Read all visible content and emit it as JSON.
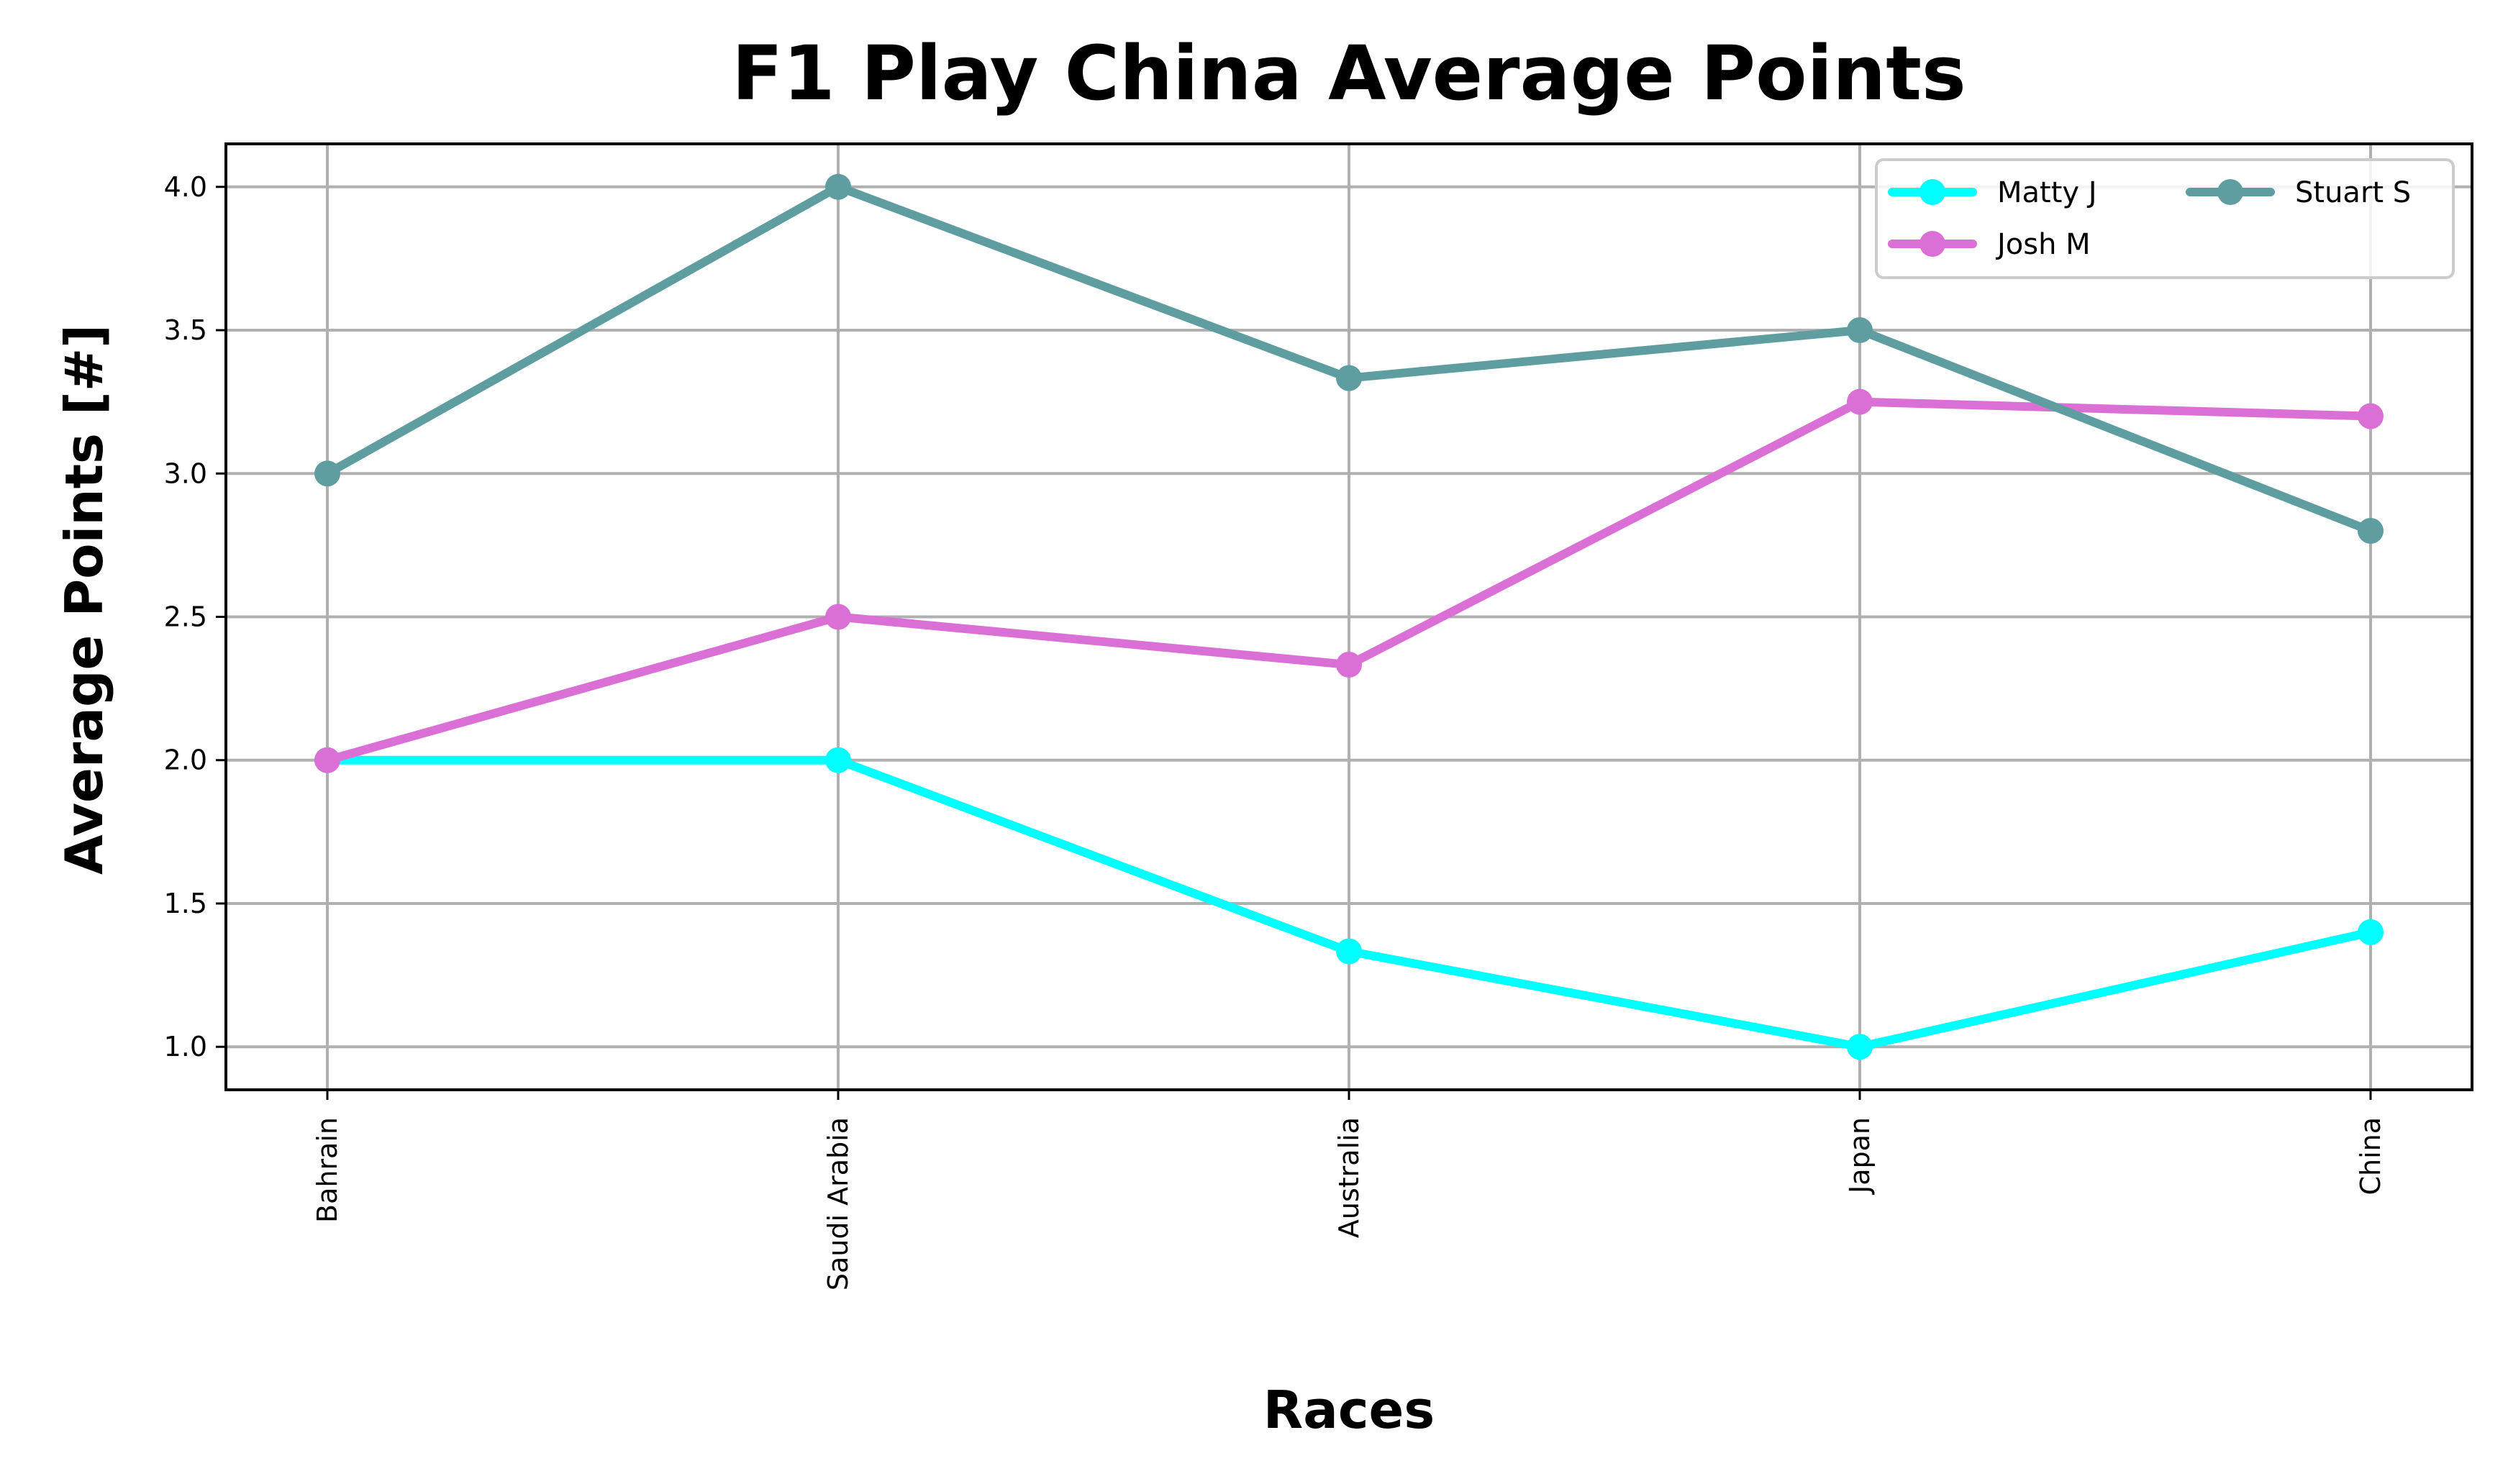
{
  "chart_data": {
    "type": "line",
    "title": "F1 Play China Average Points",
    "xlabel": "Races",
    "ylabel": "Average Points [#]",
    "categories": [
      "Bahrain",
      "Saudi Arabia",
      "Australia",
      "Japan",
      "China"
    ],
    "ylim": [
      0.85,
      4.15
    ],
    "yticks": [
      "1.0",
      "1.5",
      "2.0",
      "2.5",
      "3.0",
      "3.5",
      "4.0"
    ],
    "grid": true,
    "legend_position": "top-right",
    "series": [
      {
        "name": "Matty J",
        "color": "#00ffff",
        "values": [
          2.0,
          2.0,
          1.333,
          1.0,
          1.4
        ]
      },
      {
        "name": "Josh M",
        "color": "#da70d6",
        "values": [
          2.0,
          2.5,
          2.333,
          3.25,
          3.2
        ]
      },
      {
        "name": "Stuart S",
        "color": "#5f9ea0",
        "values": [
          3.0,
          4.0,
          3.333,
          3.5,
          2.8
        ]
      }
    ]
  }
}
